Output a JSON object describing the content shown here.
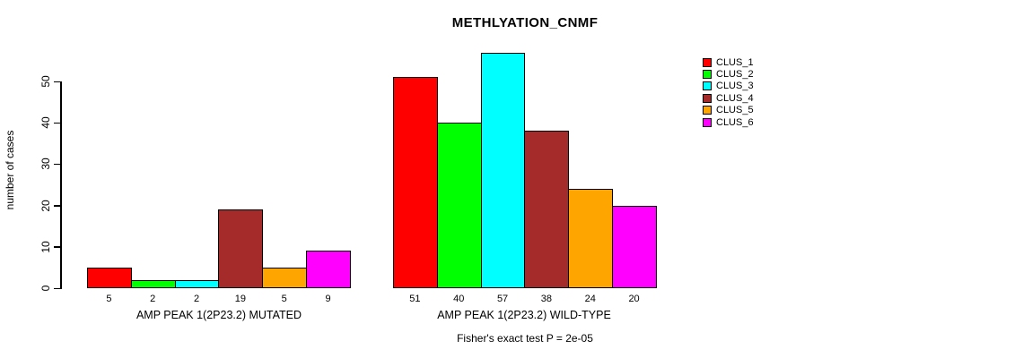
{
  "chart_data": {
    "type": "bar",
    "title": "METHLYATION_CNMF",
    "ylabel": "number of cases",
    "yticks": [
      0,
      10,
      20,
      30,
      40,
      50
    ],
    "ylim": [
      0,
      57
    ],
    "grid": false,
    "legend_position": "right",
    "caption": "Fisher's exact test P = 2e-05",
    "clusters": [
      {
        "name": "CLUS_1",
        "color": "#FF0000"
      },
      {
        "name": "CLUS_2",
        "color": "#00FF00"
      },
      {
        "name": "CLUS_3",
        "color": "#00FFFF"
      },
      {
        "name": "CLUS_4",
        "color": "#A52A2A"
      },
      {
        "name": "CLUS_5",
        "color": "#FFA500"
      },
      {
        "name": "CLUS_6",
        "color": "#FF00FF"
      }
    ],
    "groups": [
      {
        "label": "AMP PEAK 1(2P23.2) MUTATED",
        "values": [
          5,
          2,
          2,
          19,
          5,
          9
        ]
      },
      {
        "label": "AMP PEAK 1(2P23.2) WILD-TYPE",
        "values": [
          51,
          40,
          57,
          38,
          24,
          20
        ]
      }
    ]
  }
}
